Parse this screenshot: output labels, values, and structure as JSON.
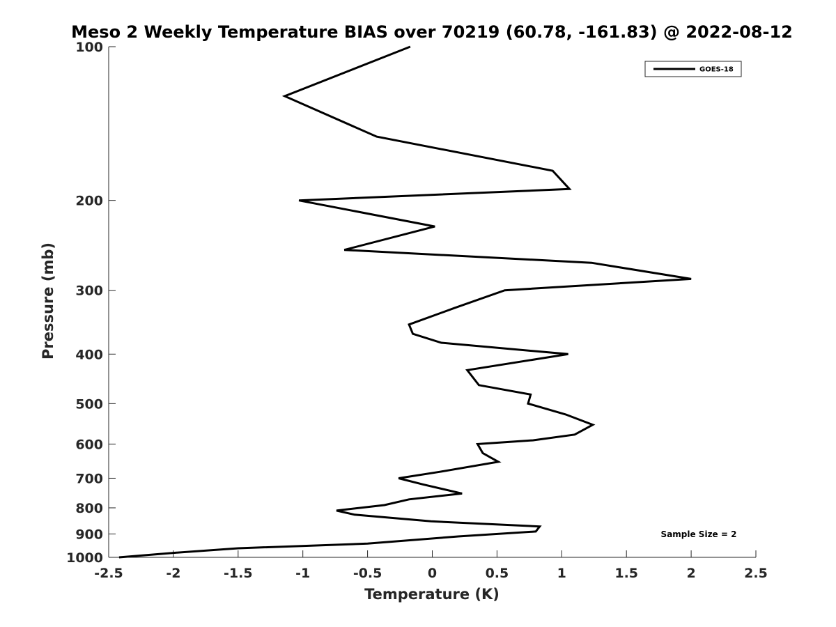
{
  "chart_data": {
    "type": "line",
    "title": "Meso 2 Weekly Temperature BIAS over 70219 (60.78, -161.83) @ 2022-08-12",
    "xlabel": "Temperature (K)",
    "ylabel": "Pressure (mb)",
    "xlim": [
      -2.5,
      2.5
    ],
    "ylim": [
      100,
      1000
    ],
    "y_scale": "log",
    "y_reversed": true,
    "x_ticks": [
      -2.5,
      -2,
      -1.5,
      -1,
      -0.5,
      0,
      0.5,
      1,
      1.5,
      2,
      2.5
    ],
    "x_tick_labels": [
      "-2.5",
      "-2",
      "-1.5",
      "-1",
      "-0.5",
      "0",
      "0.5",
      "1",
      "1.5",
      "2",
      "2.5"
    ],
    "y_ticks": [
      100,
      200,
      300,
      400,
      500,
      600,
      700,
      800,
      900,
      1000
    ],
    "y_tick_labels": [
      "100",
      "200",
      "300",
      "400",
      "500",
      "600",
      "700",
      "800",
      "900",
      "1000"
    ],
    "grid": false,
    "legend_position": "top-right",
    "series": [
      {
        "name": "GOES-18",
        "color": "#000000",
        "x": [
          -0.17,
          -1.14,
          -0.43,
          0.93,
          1.06,
          -1.03,
          0.02,
          -0.68,
          1.23,
          2.0,
          0.56,
          0.17,
          -0.18,
          -0.15,
          0.07,
          1.05,
          0.27,
          0.36,
          0.76,
          0.74,
          1.03,
          1.24,
          1.1,
          0.78,
          0.35,
          0.39,
          0.51,
          0.06,
          -0.26,
          -0.07,
          0.23,
          -0.18,
          -0.37,
          -0.74,
          -0.6,
          -0.01,
          0.83,
          0.8,
          0.2,
          -0.5,
          -1.5,
          -2.0,
          -2.42
        ],
        "y": [
          100,
          125,
          150,
          175,
          190,
          200,
          225,
          250,
          265,
          285,
          300,
          325,
          350,
          365,
          380,
          400,
          430,
          460,
          480,
          500,
          525,
          550,
          575,
          590,
          600,
          625,
          650,
          680,
          700,
          720,
          750,
          770,
          790,
          810,
          825,
          850,
          870,
          890,
          910,
          940,
          960,
          980,
          1000
        ]
      }
    ],
    "annotation": "Sample Size = 2"
  }
}
